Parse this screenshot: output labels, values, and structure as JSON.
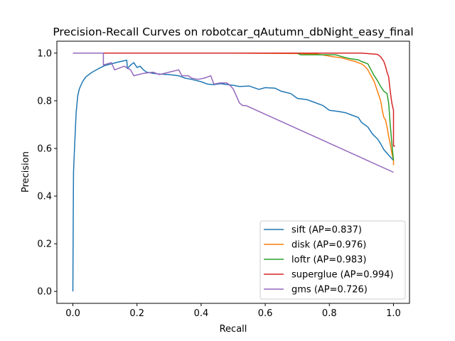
{
  "chart_data": {
    "type": "line",
    "title": "Precision-Recall Curves on robotcar_qAutumn_dbNight_easy_final",
    "xlabel": "Recall",
    "ylabel": "Precision",
    "xlim": [
      -0.05,
      1.05
    ],
    "ylim": [
      -0.05,
      1.05
    ],
    "xticks": [
      0.0,
      0.2,
      0.4,
      0.6,
      0.8,
      1.0
    ],
    "xtick_labels": [
      "0.0",
      "0.2",
      "0.4",
      "0.6",
      "0.8",
      "1.0"
    ],
    "yticks": [
      0.0,
      0.2,
      0.4,
      0.6,
      0.8,
      1.0
    ],
    "ytick_labels": [
      "0.0",
      "0.2",
      "0.4",
      "0.6",
      "0.8",
      "1.0"
    ],
    "grid": false,
    "legend_position": "lower-right",
    "series": [
      {
        "name": "sift (AP=0.837)",
        "color": "#1f77b4",
        "points": [
          [
            0.0,
            0.0
          ],
          [
            0.001,
            0.3
          ],
          [
            0.002,
            0.5
          ],
          [
            0.005,
            0.6
          ],
          [
            0.01,
            0.75
          ],
          [
            0.015,
            0.82
          ],
          [
            0.02,
            0.85
          ],
          [
            0.03,
            0.88
          ],
          [
            0.04,
            0.9
          ],
          [
            0.06,
            0.92
          ],
          [
            0.08,
            0.935
          ],
          [
            0.1,
            0.948
          ],
          [
            0.12,
            0.955
          ],
          [
            0.14,
            0.962
          ],
          [
            0.16,
            0.968
          ],
          [
            0.168,
            0.97
          ],
          [
            0.17,
            0.935
          ],
          [
            0.18,
            0.95
          ],
          [
            0.19,
            0.96
          ],
          [
            0.2,
            0.94
          ],
          [
            0.21,
            0.945
          ],
          [
            0.22,
            0.93
          ],
          [
            0.23,
            0.92
          ],
          [
            0.25,
            0.915
          ],
          [
            0.27,
            0.912
          ],
          [
            0.3,
            0.91
          ],
          [
            0.33,
            0.905
          ],
          [
            0.35,
            0.895
          ],
          [
            0.37,
            0.89
          ],
          [
            0.4,
            0.88
          ],
          [
            0.42,
            0.87
          ],
          [
            0.44,
            0.868
          ],
          [
            0.46,
            0.872
          ],
          [
            0.5,
            0.865
          ],
          [
            0.52,
            0.86
          ],
          [
            0.55,
            0.862
          ],
          [
            0.58,
            0.848
          ],
          [
            0.6,
            0.855
          ],
          [
            0.63,
            0.853
          ],
          [
            0.65,
            0.84
          ],
          [
            0.68,
            0.83
          ],
          [
            0.7,
            0.81
          ],
          [
            0.73,
            0.805
          ],
          [
            0.75,
            0.795
          ],
          [
            0.78,
            0.78
          ],
          [
            0.8,
            0.76
          ],
          [
            0.83,
            0.755
          ],
          [
            0.85,
            0.75
          ],
          [
            0.87,
            0.74
          ],
          [
            0.89,
            0.73
          ],
          [
            0.9,
            0.71
          ],
          [
            0.92,
            0.69
          ],
          [
            0.935,
            0.66
          ],
          [
            0.95,
            0.64
          ],
          [
            0.96,
            0.62
          ],
          [
            0.97,
            0.595
          ],
          [
            0.98,
            0.58
          ],
          [
            0.99,
            0.565
          ],
          [
            1.0,
            0.55
          ]
        ]
      },
      {
        "name": "disk (AP=0.976)",
        "color": "#ff7f0e",
        "points": [
          [
            0.0,
            1.0
          ],
          [
            0.5,
            1.0
          ],
          [
            0.7,
            0.998
          ],
          [
            0.76,
            0.996
          ],
          [
            0.79,
            0.99
          ],
          [
            0.81,
            0.985
          ],
          [
            0.84,
            0.98
          ],
          [
            0.86,
            0.972
          ],
          [
            0.88,
            0.965
          ],
          [
            0.9,
            0.955
          ],
          [
            0.91,
            0.945
          ],
          [
            0.92,
            0.93
          ],
          [
            0.93,
            0.905
          ],
          [
            0.94,
            0.88
          ],
          [
            0.95,
            0.84
          ],
          [
            0.955,
            0.82
          ],
          [
            0.96,
            0.8
          ],
          [
            0.965,
            0.76
          ],
          [
            0.97,
            0.73
          ],
          [
            0.975,
            0.72
          ],
          [
            0.98,
            0.69
          ],
          [
            0.985,
            0.65
          ],
          [
            0.99,
            0.62
          ],
          [
            0.995,
            0.58
          ],
          [
            1.0,
            0.55
          ],
          [
            1.0,
            0.53
          ]
        ]
      },
      {
        "name": "loftr (AP=0.983)",
        "color": "#2ca02c",
        "points": [
          [
            0.0,
            1.0
          ],
          [
            0.7,
            1.0
          ],
          [
            0.71,
            0.993
          ],
          [
            0.82,
            0.993
          ],
          [
            0.84,
            0.985
          ],
          [
            0.86,
            0.978
          ],
          [
            0.89,
            0.972
          ],
          [
            0.9,
            0.965
          ],
          [
            0.92,
            0.955
          ],
          [
            0.93,
            0.93
          ],
          [
            0.94,
            0.905
          ],
          [
            0.95,
            0.885
          ],
          [
            0.96,
            0.86
          ],
          [
            0.97,
            0.84
          ],
          [
            0.98,
            0.83
          ],
          [
            0.985,
            0.79
          ],
          [
            0.99,
            0.7
          ],
          [
            0.995,
            0.62
          ],
          [
            1.0,
            0.55
          ]
        ]
      },
      {
        "name": "superglue (AP=0.994)",
        "color": "#d62728",
        "points": [
          [
            0.0,
            1.0
          ],
          [
            0.9,
            1.0
          ],
          [
            0.95,
            0.995
          ],
          [
            0.96,
            0.985
          ],
          [
            0.97,
            0.965
          ],
          [
            0.975,
            0.945
          ],
          [
            0.98,
            0.92
          ],
          [
            0.985,
            0.9
          ],
          [
            0.99,
            0.84
          ],
          [
            0.995,
            0.79
          ],
          [
            1.0,
            0.76
          ],
          [
            1.0,
            0.61
          ],
          [
            1.005,
            0.61
          ]
        ]
      },
      {
        "name": "gms (AP=0.726)",
        "color": "#9467bd",
        "points": [
          [
            0.0,
            1.0
          ],
          [
            0.095,
            1.0
          ],
          [
            0.095,
            0.95
          ],
          [
            0.12,
            0.96
          ],
          [
            0.13,
            0.93
          ],
          [
            0.16,
            0.945
          ],
          [
            0.18,
            0.93
          ],
          [
            0.19,
            0.905
          ],
          [
            0.22,
            0.915
          ],
          [
            0.25,
            0.92
          ],
          [
            0.27,
            0.91
          ],
          [
            0.3,
            0.92
          ],
          [
            0.33,
            0.93
          ],
          [
            0.34,
            0.905
          ],
          [
            0.36,
            0.905
          ],
          [
            0.37,
            0.895
          ],
          [
            0.39,
            0.89
          ],
          [
            0.41,
            0.895
          ],
          [
            0.42,
            0.9
          ],
          [
            0.43,
            0.905
          ],
          [
            0.44,
            0.87
          ],
          [
            0.46,
            0.875
          ],
          [
            0.48,
            0.875
          ],
          [
            0.49,
            0.865
          ],
          [
            0.5,
            0.85
          ],
          [
            0.51,
            0.82
          ],
          [
            0.52,
            0.79
          ],
          [
            0.53,
            0.78
          ],
          [
            0.54,
            0.78
          ],
          [
            1.0,
            0.5
          ]
        ]
      }
    ]
  }
}
